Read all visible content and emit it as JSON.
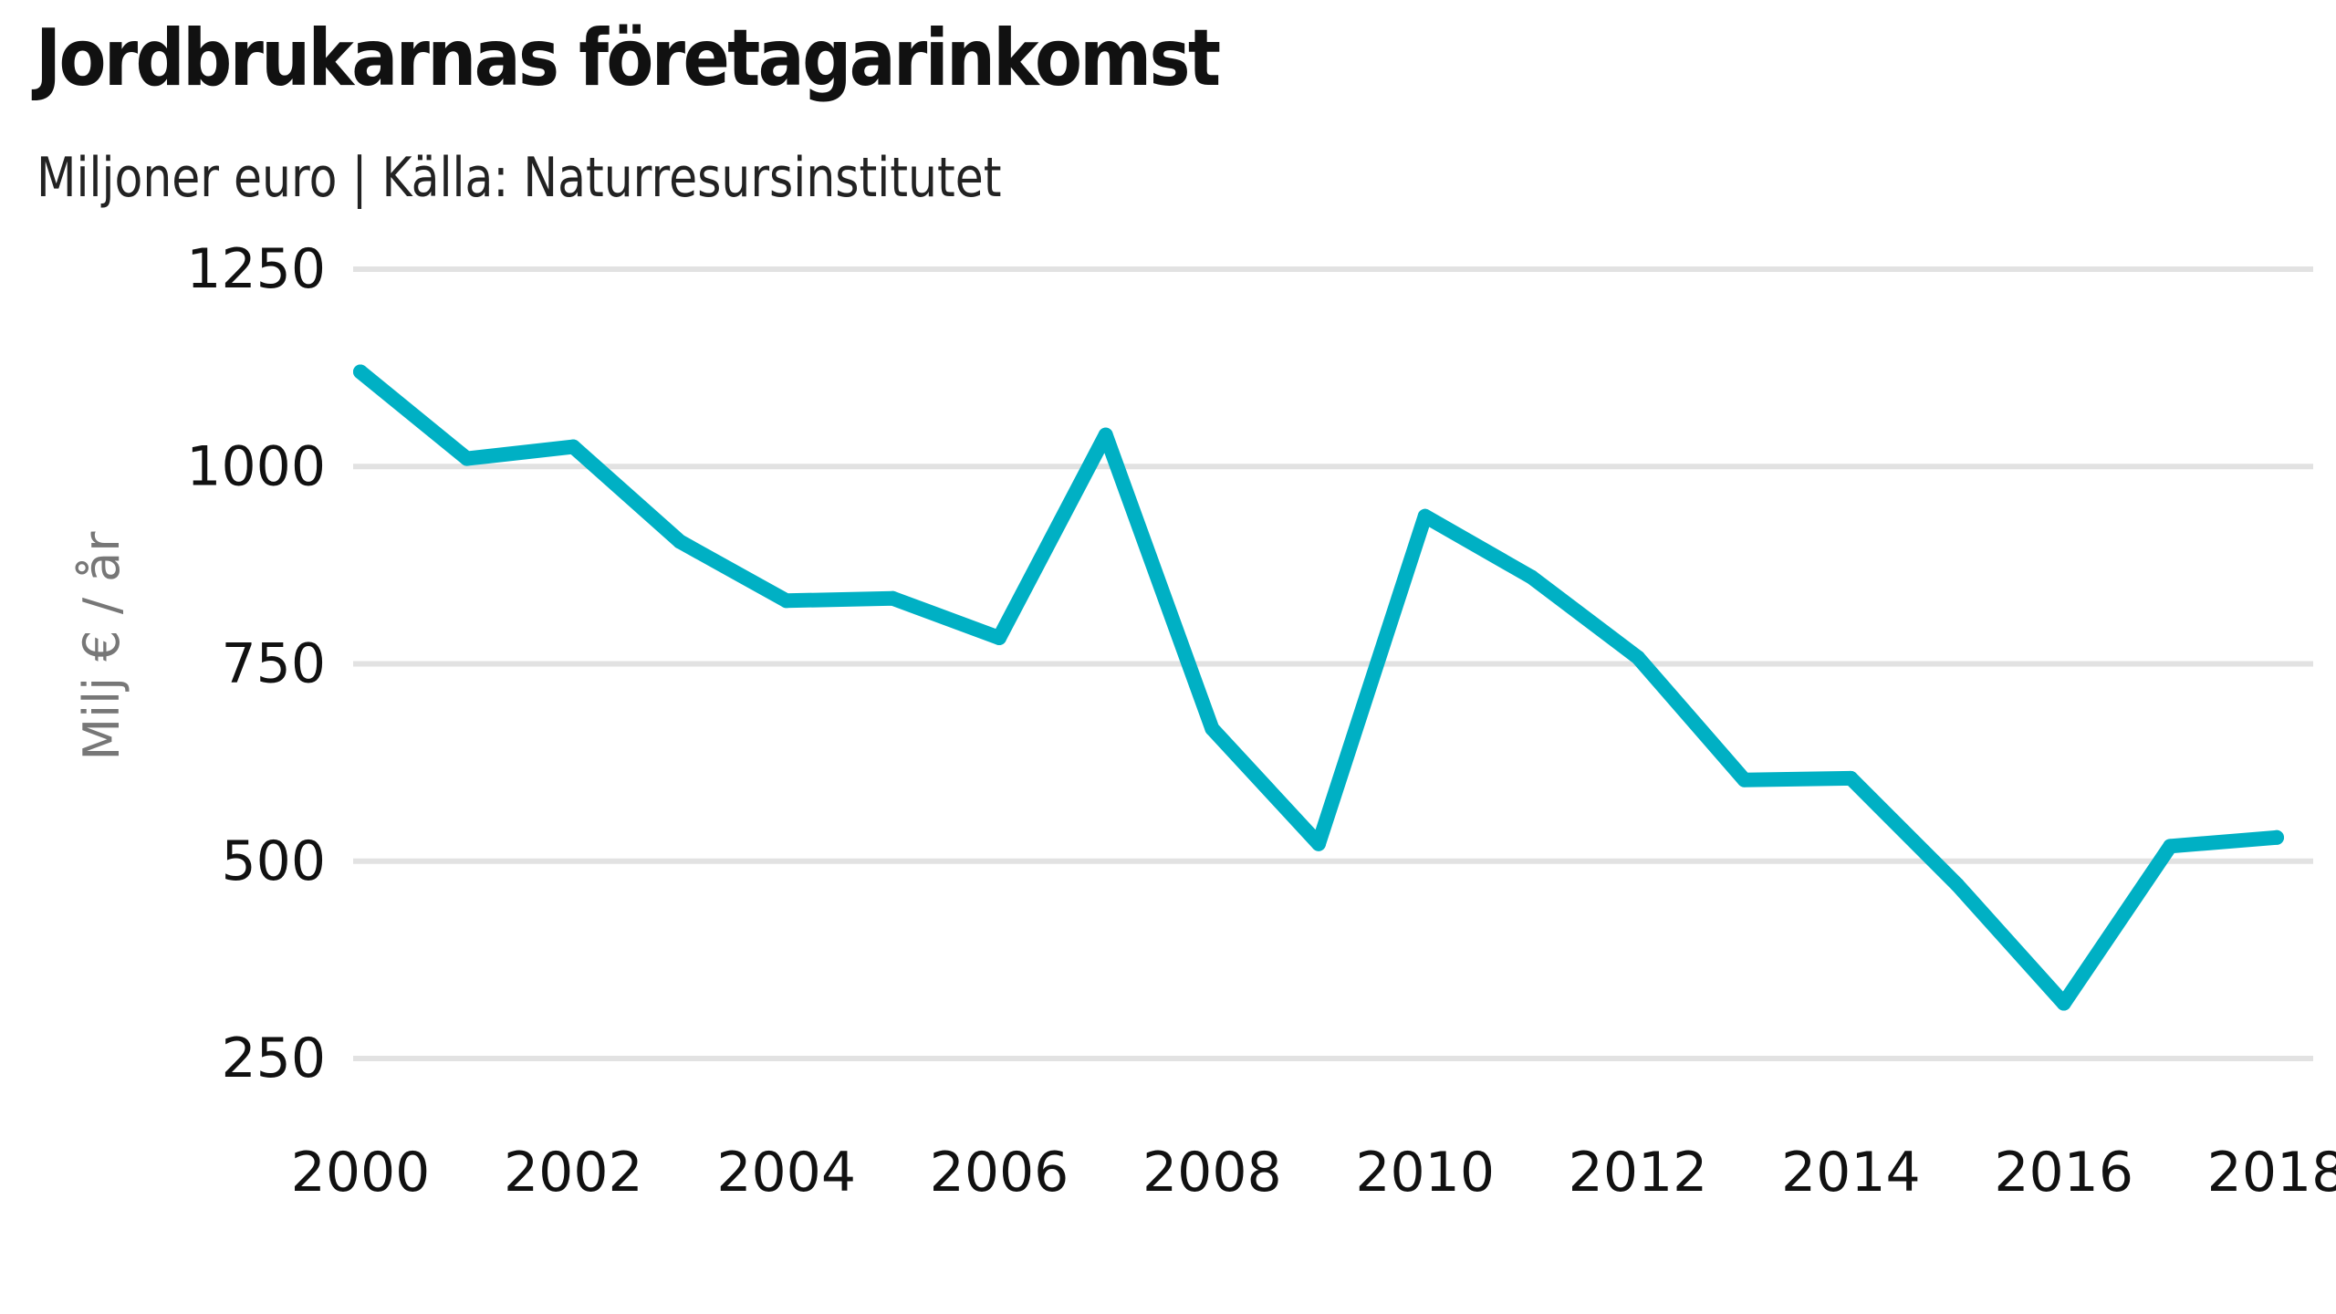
{
  "chart_data": {
    "type": "line",
    "title": "Jordbrukarnas företagarinkomst",
    "subtitle": "Miljoner euro | Källa: Naturresursinstitutet",
    "ylabel": "Milj € / år",
    "xlabel": "",
    "ylim": [
      250,
      1250
    ],
    "yticks": [
      "250",
      "500",
      "750",
      "1000",
      "1250"
    ],
    "xticks": [
      "2000",
      "2002",
      "2004",
      "2006",
      "2008",
      "2010",
      "2012",
      "2014",
      "2016",
      "2018"
    ],
    "grid": true,
    "colors": {
      "line": "#00b0c4",
      "grid": "#e2e2e2"
    },
    "series": [
      {
        "x": [
          2000,
          2001,
          2002,
          2003,
          2004,
          2005,
          2006,
          2007,
          2008,
          2009,
          2010,
          2011,
          2012,
          2013,
          2014,
          2015,
          2016,
          2017,
          2018
        ],
        "values": [
          1120,
          1010,
          1025,
          905,
          830,
          833,
          783,
          1040,
          668,
          522,
          937,
          860,
          758,
          603,
          605,
          470,
          320,
          519,
          530
        ]
      }
    ]
  }
}
